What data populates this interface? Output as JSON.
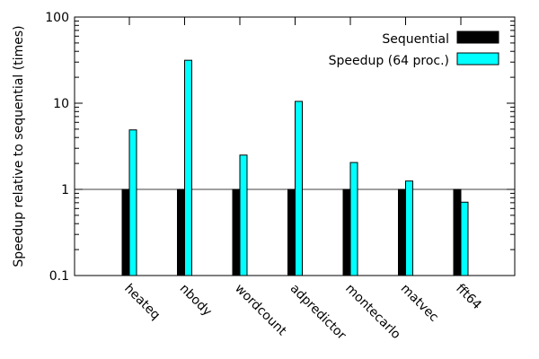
{
  "chart_data": {
    "type": "bar",
    "ylabel": "Speedup relative to sequential (times)",
    "y_scale": "log",
    "ylim": [
      0.1,
      100
    ],
    "yticks": [
      {
        "value": 0.1,
        "label": "0.1"
      },
      {
        "value": 1,
        "label": "1"
      },
      {
        "value": 10,
        "label": "10"
      },
      {
        "value": 100,
        "label": "100"
      }
    ],
    "reference_line": 1,
    "legend_position": "top-right",
    "categories": [
      "heateq",
      "nbody",
      "wordcount",
      "adpredictor",
      "montecarlo",
      "matvec",
      "fft64"
    ],
    "series": [
      {
        "name": "Sequential",
        "color": "#000000",
        "values": [
          1,
          1,
          1,
          1,
          1,
          1,
          1
        ]
      },
      {
        "name": "Speedup (64 proc.)",
        "color": "#00ffff",
        "values": [
          4.9,
          31.5,
          2.5,
          10.5,
          2.05,
          1.25,
          0.71
        ]
      }
    ]
  }
}
